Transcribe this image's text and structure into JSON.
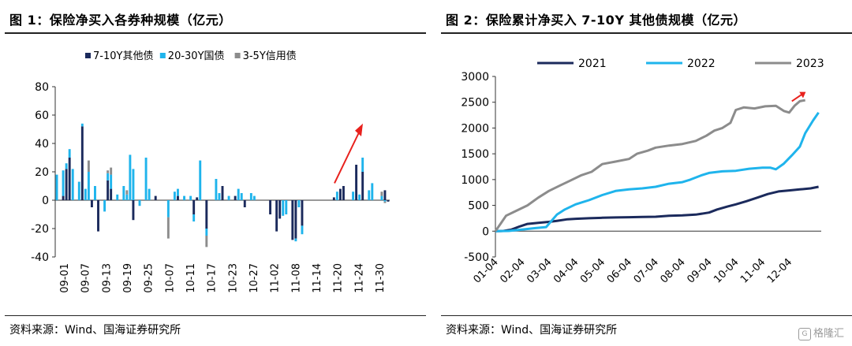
{
  "left": {
    "title": "图 1：保险净买入各券种规模（亿元）",
    "source": "资料来源：Wind、国海证券研究所"
  },
  "right": {
    "title": "图 2：保险累计净买入 7-10Y 其他债规模（亿元）",
    "source": "资料来源：Wind、国海证券研究所"
  },
  "watermark": {
    "text": "格隆汇",
    "icon": "gelonghui-logo-icon"
  },
  "colors": {
    "navy": "#1b2a5c",
    "cyan": "#1fb4ec",
    "gray": "#8c8c8c",
    "red": "#e8211d",
    "axis": "#333333"
  },
  "chart_data": [
    {
      "type": "bar",
      "stacked": true,
      "yticks": [
        -40,
        -20,
        0,
        20,
        40,
        60,
        80
      ],
      "ylim": [
        -40,
        80
      ],
      "xtick_labels": [
        "09-01",
        "09-07",
        "09-13",
        "09-19",
        "09-25",
        "10-07",
        "10-11",
        "10-17",
        "10-23",
        "10-27",
        "11-02",
        "11-08",
        "11-14",
        "11-20",
        "11-24",
        "11-30"
      ],
      "legend_position": "top",
      "series": [
        {
          "name": "7-10Y其他债",
          "color": "#1b2a5c",
          "values": [
            0,
            0,
            3,
            22,
            30,
            0,
            0,
            0,
            52,
            0,
            0,
            -5,
            0,
            -22,
            0,
            0,
            14,
            8,
            0,
            0,
            0,
            0,
            0,
            0,
            -14,
            0,
            0,
            0,
            0,
            0,
            0,
            3,
            0,
            0,
            0,
            0,
            0,
            0,
            3,
            0,
            0,
            0,
            0,
            -10,
            2,
            0,
            0,
            -20,
            0,
            0,
            0,
            0,
            10,
            0,
            0,
            0,
            3,
            0,
            0,
            -5,
            0,
            0,
            0,
            0,
            0,
            0,
            0,
            -10,
            0,
            -22,
            -13,
            0,
            0,
            0,
            -28,
            -27,
            0,
            -18,
            0,
            0,
            0,
            0,
            0,
            0,
            0,
            0,
            0,
            2,
            0,
            8,
            10,
            0,
            0,
            0,
            25,
            0,
            20,
            0,
            0,
            0,
            0,
            0,
            0,
            7,
            -1
          ]
        },
        {
          "name": "20-30Y国债",
          "color": "#1fb4ec",
          "values": [
            18,
            0,
            18,
            4,
            6,
            22,
            0,
            13,
            2,
            8,
            20,
            0,
            10,
            0,
            0,
            -8,
            5,
            10,
            0,
            4,
            0,
            10,
            4,
            32,
            22,
            0,
            -4,
            0,
            30,
            8,
            0,
            0,
            0,
            0,
            0,
            -12,
            0,
            6,
            5,
            0,
            3,
            0,
            3,
            -5,
            0,
            28,
            0,
            -5,
            0,
            0,
            15,
            5,
            0,
            0,
            3,
            0,
            0,
            8,
            5,
            0,
            0,
            5,
            3,
            0,
            0,
            0,
            0,
            0,
            0,
            0,
            0,
            -11,
            -10,
            0,
            0,
            -2,
            -5,
            -6,
            0,
            0,
            0,
            0,
            0,
            0,
            0,
            0,
            0,
            0,
            6,
            0,
            0,
            0,
            0,
            6,
            0,
            4,
            10,
            0,
            7,
            12,
            0,
            0,
            3,
            -1
          ]
        },
        {
          "name": "3-5Y信用债",
          "color": "#8c8c8c",
          "values": [
            0,
            0,
            0,
            0,
            0,
            0,
            0,
            0,
            0,
            0,
            8,
            0,
            0,
            0,
            0,
            0,
            2,
            5,
            0,
            0,
            0,
            0,
            3,
            0,
            0,
            0,
            0,
            0,
            0,
            0,
            0,
            0,
            0,
            0,
            0,
            -15,
            0,
            0,
            0,
            0,
            0,
            0,
            0,
            0,
            0,
            0,
            0,
            -8,
            0,
            0,
            0,
            0,
            0,
            0,
            0,
            0,
            0,
            0,
            0,
            0,
            0,
            0,
            0,
            0,
            0,
            0,
            0,
            0,
            0,
            0,
            0,
            0,
            0,
            0,
            0,
            0,
            0,
            0,
            0,
            0,
            0,
            0,
            0,
            0,
            0,
            0,
            0,
            0,
            0,
            0,
            0,
            0,
            0,
            0,
            0,
            0,
            0,
            0,
            0,
            0,
            0,
            0,
            3,
            -1
          ]
        }
      ]
    },
    {
      "type": "line",
      "ylim": [
        -500,
        3000
      ],
      "yticks": [
        -500,
        0,
        500,
        1000,
        1500,
        2000,
        2500,
        3000
      ],
      "xtick_labels": [
        "01-04",
        "02-04",
        "03-04",
        "04-04",
        "05-04",
        "06-04",
        "07-04",
        "08-04",
        "09-04",
        "10-04",
        "11-04",
        "12-04"
      ],
      "legend_position": "top",
      "series": [
        {
          "name": "2021",
          "color": "#1b2a5c",
          "points": [
            [
              1,
              0
            ],
            [
              1.3,
              5
            ],
            [
              1.6,
              30
            ],
            [
              1.9,
              90
            ],
            [
              2.2,
              140
            ],
            [
              2.6,
              160
            ],
            [
              3,
              180
            ],
            [
              3.3,
              200
            ],
            [
              3.7,
              230
            ],
            [
              4,
              240
            ],
            [
              4.5,
              250
            ],
            [
              5,
              260
            ],
            [
              5.5,
              265
            ],
            [
              6,
              270
            ],
            [
              6.5,
              275
            ],
            [
              7,
              280
            ],
            [
              7.5,
              300
            ],
            [
              8,
              305
            ],
            [
              8.5,
              320
            ],
            [
              9,
              360
            ],
            [
              9.3,
              420
            ],
            [
              9.7,
              480
            ],
            [
              10,
              520
            ],
            [
              10.4,
              580
            ],
            [
              10.8,
              650
            ],
            [
              11.2,
              720
            ],
            [
              11.6,
              770
            ],
            [
              12,
              790
            ],
            [
              12.4,
              810
            ],
            [
              12.8,
              830
            ],
            [
              13.1,
              860
            ]
          ]
        },
        {
          "name": "2022",
          "color": "#1fb4ec",
          "points": [
            [
              1,
              0
            ],
            [
              1.5,
              5
            ],
            [
              2,
              30
            ],
            [
              2.5,
              60
            ],
            [
              2.9,
              80
            ],
            [
              3.1,
              200
            ],
            [
              3.3,
              320
            ],
            [
              3.6,
              420
            ],
            [
              4,
              520
            ],
            [
              4.5,
              600
            ],
            [
              5,
              700
            ],
            [
              5.5,
              780
            ],
            [
              6,
              810
            ],
            [
              6.5,
              830
            ],
            [
              7,
              860
            ],
            [
              7.5,
              920
            ],
            [
              8,
              950
            ],
            [
              8.3,
              1000
            ],
            [
              8.7,
              1080
            ],
            [
              9,
              1130
            ],
            [
              9.5,
              1160
            ],
            [
              10,
              1170
            ],
            [
              10.5,
              1210
            ],
            [
              11,
              1230
            ],
            [
              11.3,
              1230
            ],
            [
              11.5,
              1200
            ],
            [
              11.8,
              1310
            ],
            [
              12.1,
              1470
            ],
            [
              12.4,
              1640
            ],
            [
              12.6,
              1900
            ],
            [
              12.9,
              2150
            ],
            [
              13.1,
              2300
            ]
          ]
        },
        {
          "name": "2023",
          "color": "#8c8c8c",
          "points": [
            [
              1,
              0
            ],
            [
              1.2,
              150
            ],
            [
              1.4,
              300
            ],
            [
              1.8,
              400
            ],
            [
              2.2,
              500
            ],
            [
              2.6,
              650
            ],
            [
              3,
              780
            ],
            [
              3.4,
              880
            ],
            [
              3.8,
              980
            ],
            [
              4.2,
              1080
            ],
            [
              4.6,
              1150
            ],
            [
              5,
              1300
            ],
            [
              5.5,
              1350
            ],
            [
              6,
              1400
            ],
            [
              6.3,
              1500
            ],
            [
              6.7,
              1560
            ],
            [
              7,
              1620
            ],
            [
              7.5,
              1660
            ],
            [
              8,
              1690
            ],
            [
              8.5,
              1750
            ],
            [
              8.9,
              1850
            ],
            [
              9.2,
              1950
            ],
            [
              9.5,
              2000
            ],
            [
              9.8,
              2100
            ],
            [
              10,
              2350
            ],
            [
              10.3,
              2400
            ],
            [
              10.7,
              2380
            ],
            [
              11.1,
              2420
            ],
            [
              11.5,
              2430
            ],
            [
              11.8,
              2330
            ],
            [
              12.0,
              2300
            ],
            [
              12.2,
              2430
            ],
            [
              12.4,
              2520
            ],
            [
              12.6,
              2540
            ]
          ]
        }
      ]
    }
  ]
}
